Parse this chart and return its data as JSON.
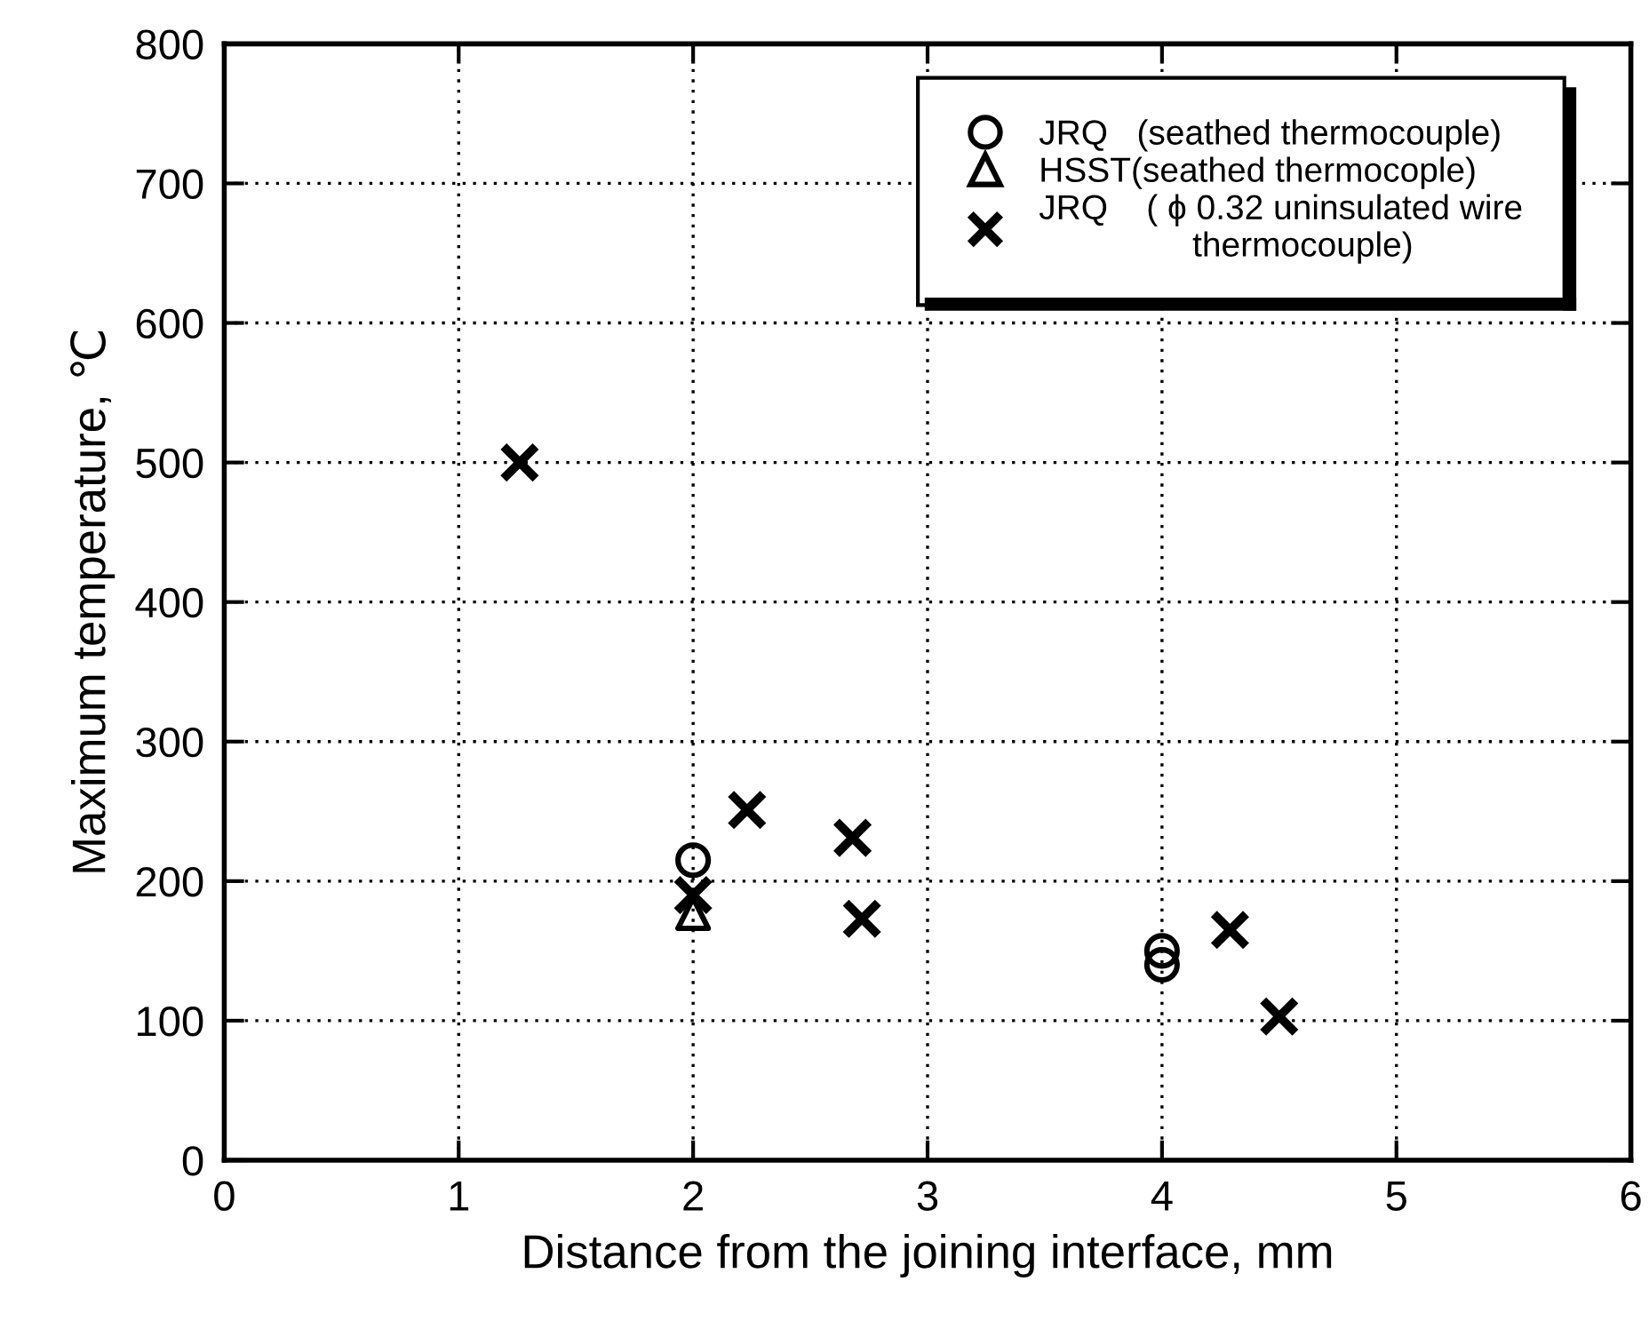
{
  "chart_data": {
    "type": "scatter",
    "xlabel": "Distance from the joining interface, mm",
    "ylabel": "Maximum temperature, ℃",
    "xlim": [
      0,
      6
    ],
    "xticks": [
      0,
      1,
      2,
      3,
      4,
      5,
      6
    ],
    "ylim": [
      0,
      800
    ],
    "yticks": [
      0,
      100,
      200,
      300,
      400,
      500,
      600,
      700,
      800
    ],
    "grid": true,
    "legend": "top right",
    "series": [
      {
        "name": "JRQ   (seathed thermocouple)",
        "color": "#000000",
        "marker": "circle",
        "x": [
          2,
          4,
          4
        ],
        "values": [
          215,
          150,
          140
        ]
      },
      {
        "name": "HSST(seathed thermocople)",
        "color": "#000000",
        "marker": "triangle",
        "x": [
          2
        ],
        "values": [
          177
        ]
      },
      {
        "name": "JRQ    ( ϕ 0.32 uninsulated wire\n                thermocouple)",
        "color": "#000000",
        "marker": "cross",
        "x": [
          1.26,
          2,
          2.23,
          2.68,
          2.72,
          4.29,
          4.5
        ],
        "values": [
          500,
          190,
          251,
          231,
          173,
          165,
          103
        ]
      }
    ]
  }
}
